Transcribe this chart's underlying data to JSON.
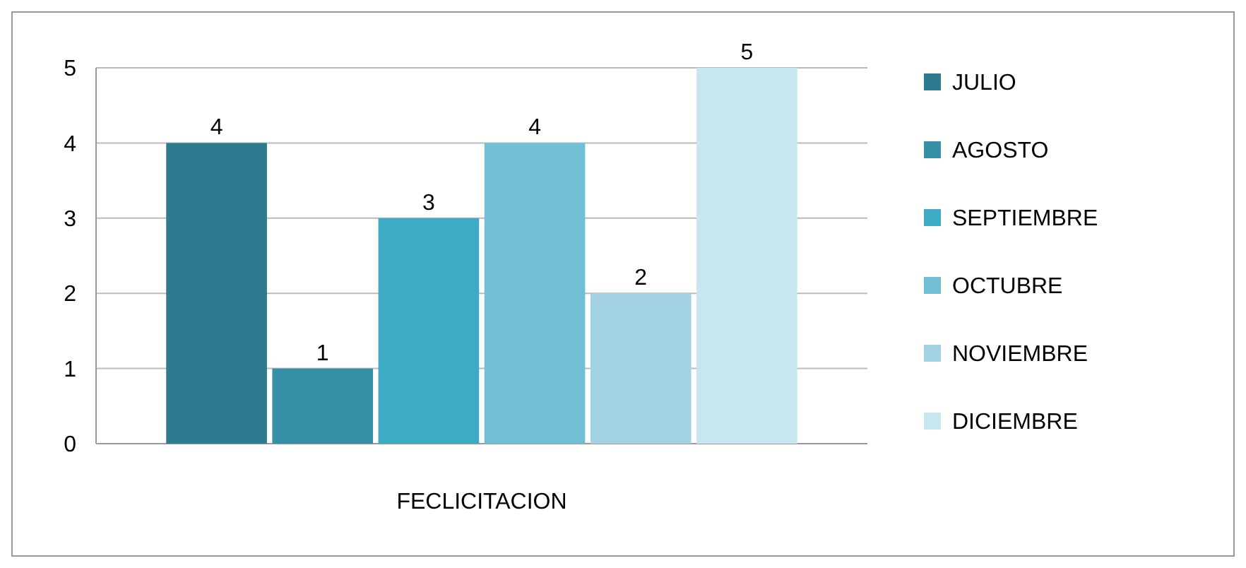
{
  "chart_data": {
    "type": "bar",
    "categories": [
      "FECLICITACION"
    ],
    "series": [
      {
        "name": "JULIO",
        "color": "#2e7b8f",
        "values": [
          4
        ]
      },
      {
        "name": "AGOSTO",
        "color": "#3590a6",
        "values": [
          1
        ]
      },
      {
        "name": "SEPTIEMBRE",
        "color": "#3eaac4",
        "values": [
          3
        ]
      },
      {
        "name": "OCTUBRE",
        "color": "#72bfd5",
        "values": [
          4
        ]
      },
      {
        "name": "NOVIEMBRE",
        "color": "#a3d3e2",
        "values": [
          2
        ]
      },
      {
        "name": "DICIEMBRE",
        "color": "#c7e6ef",
        "values": [
          5
        ]
      }
    ],
    "ylim": [
      0,
      5
    ],
    "yticks": [
      0,
      1,
      2,
      3,
      4,
      5
    ],
    "grid": "y",
    "legend": "right",
    "data_labels": true
  }
}
